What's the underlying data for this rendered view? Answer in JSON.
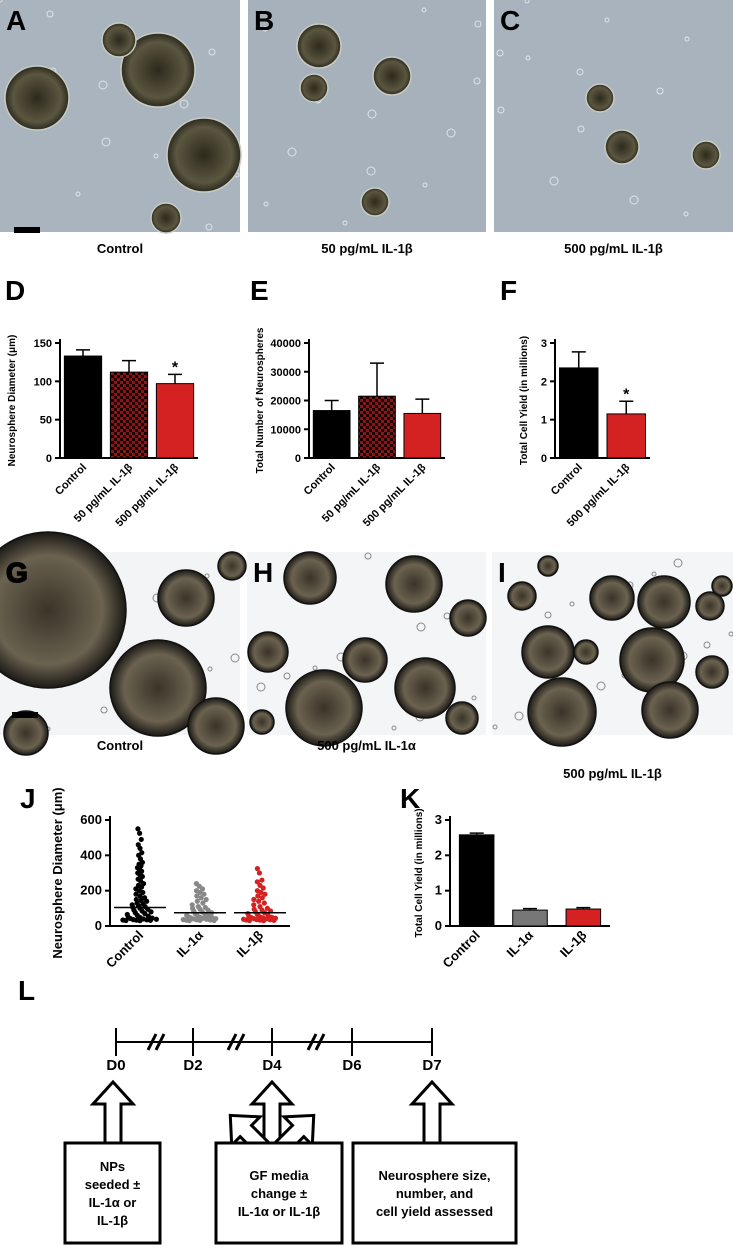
{
  "images": [
    {
      "panel": "A",
      "caption": "Control"
    },
    {
      "panel": "B",
      "caption": "50 pg/mL IL-1β"
    },
    {
      "panel": "C",
      "caption": "500 pg/mL IL-1β"
    },
    {
      "panel": "G",
      "caption": "Control"
    },
    {
      "panel": "H",
      "caption": "500 pg/mL IL-1α"
    },
    {
      "panel": "I",
      "caption": "500 pg/mL IL-1β"
    }
  ],
  "chart_data": [
    {
      "type": "bar",
      "panel": "D",
      "y_label": "Neurosphere Diameter (μm)",
      "categories": [
        "Control",
        "50 pg/mL IL-1β",
        "500 pg/mL IL-1β"
      ],
      "values": [
        133,
        112,
        97
      ],
      "errors": [
        8,
        15,
        12
      ],
      "colors": [
        "#000000",
        "#8c1414",
        "#d42222"
      ],
      "patterns": [
        null,
        "checker",
        null
      ],
      "significance": [
        null,
        null,
        "*"
      ],
      "ylim": [
        0,
        150
      ],
      "yticks": [
        0,
        50,
        100,
        150
      ]
    },
    {
      "type": "bar",
      "panel": "E",
      "y_label": "Total Number of Neurospheres",
      "categories": [
        "Control",
        "50 pg/mL IL-1β",
        "500 pg/mL IL-1β"
      ],
      "values": [
        16500,
        21500,
        15500
      ],
      "errors": [
        3500,
        11500,
        5000
      ],
      "colors": [
        "#000000",
        "#8c1414",
        "#d42222"
      ],
      "patterns": [
        null,
        "checker",
        null
      ],
      "ylim": [
        0,
        40000
      ],
      "yticks": [
        0,
        10000,
        20000,
        30000,
        40000
      ]
    },
    {
      "type": "bar",
      "panel": "F",
      "y_label": "Total Cell Yield (in millions)",
      "categories": [
        "Control",
        "500 pg/mL IL-1β"
      ],
      "values": [
        2.35,
        1.15
      ],
      "errors": [
        0.42,
        0.33
      ],
      "colors": [
        "#000000",
        "#d42222"
      ],
      "significance": [
        null,
        "*"
      ],
      "ylim": [
        0,
        3
      ],
      "yticks": [
        0,
        1,
        2,
        3
      ]
    },
    {
      "type": "scatter",
      "panel": "J",
      "y_label": "Neurosphere Diameter (μm)",
      "categories": [
        "Control",
        "IL-1α",
        "IL-1β"
      ],
      "series": [
        {
          "color": "#000000",
          "values": [
            550,
            525,
            490,
            460,
            440,
            415,
            400,
            380,
            360,
            350,
            340,
            330,
            320,
            310,
            300,
            290,
            280,
            265,
            255,
            240,
            230,
            220,
            210,
            200,
            190,
            180,
            170,
            160,
            150,
            145,
            140,
            130,
            125,
            120,
            115,
            110,
            105,
            100,
            95,
            90,
            85,
            80,
            75,
            70,
            65,
            60,
            55,
            50,
            48,
            45,
            42,
            40,
            38,
            36,
            35,
            34,
            33,
            32,
            31,
            30
          ]
        },
        {
          "color": "#888888",
          "values": [
            240,
            225,
            210,
            200,
            190,
            180,
            170,
            160,
            150,
            140,
            130,
            120,
            110,
            105,
            100,
            95,
            90,
            85,
            80,
            75,
            70,
            65,
            60,
            58,
            55,
            52,
            50,
            48,
            46,
            44,
            42,
            40,
            38,
            36,
            35,
            34,
            33,
            32,
            31,
            30
          ]
        },
        {
          "color": "#d42222",
          "values": [
            325,
            300,
            260,
            250,
            230,
            215,
            200,
            190,
            180,
            170,
            160,
            150,
            140,
            130,
            120,
            110,
            100,
            95,
            90,
            85,
            80,
            75,
            70,
            65,
            60,
            55,
            52,
            50,
            48,
            46,
            44,
            42,
            40,
            38,
            36,
            35,
            34,
            33,
            32,
            31,
            30
          ]
        }
      ],
      "means": [
        105,
        75,
        75
      ],
      "ylim": [
        0,
        600
      ],
      "yticks": [
        0,
        200,
        400,
        600
      ]
    },
    {
      "type": "bar",
      "panel": "K",
      "y_label": "Total Cell Yield (in millions)",
      "categories": [
        "Control",
        "IL-1α",
        "IL-1β"
      ],
      "values": [
        2.58,
        0.45,
        0.48
      ],
      "errors": [
        0.05,
        0.04,
        0.04
      ],
      "colors": [
        "#000000",
        "#777777",
        "#d42222"
      ],
      "ylim": [
        0,
        3
      ],
      "yticks": [
        0,
        1,
        2,
        3
      ]
    }
  ],
  "timeline": {
    "panel": "L",
    "days": [
      "D0",
      "D2",
      "D4",
      "D6",
      "D7"
    ],
    "boxes": [
      [
        "NPs",
        "seeded ±",
        "IL-1α or",
        "IL-1β"
      ],
      [
        "GF media",
        "change ±",
        "IL-1α or IL-1β"
      ],
      [
        "Neurosphere size,",
        "number, and",
        "cell yield assessed"
      ]
    ]
  }
}
